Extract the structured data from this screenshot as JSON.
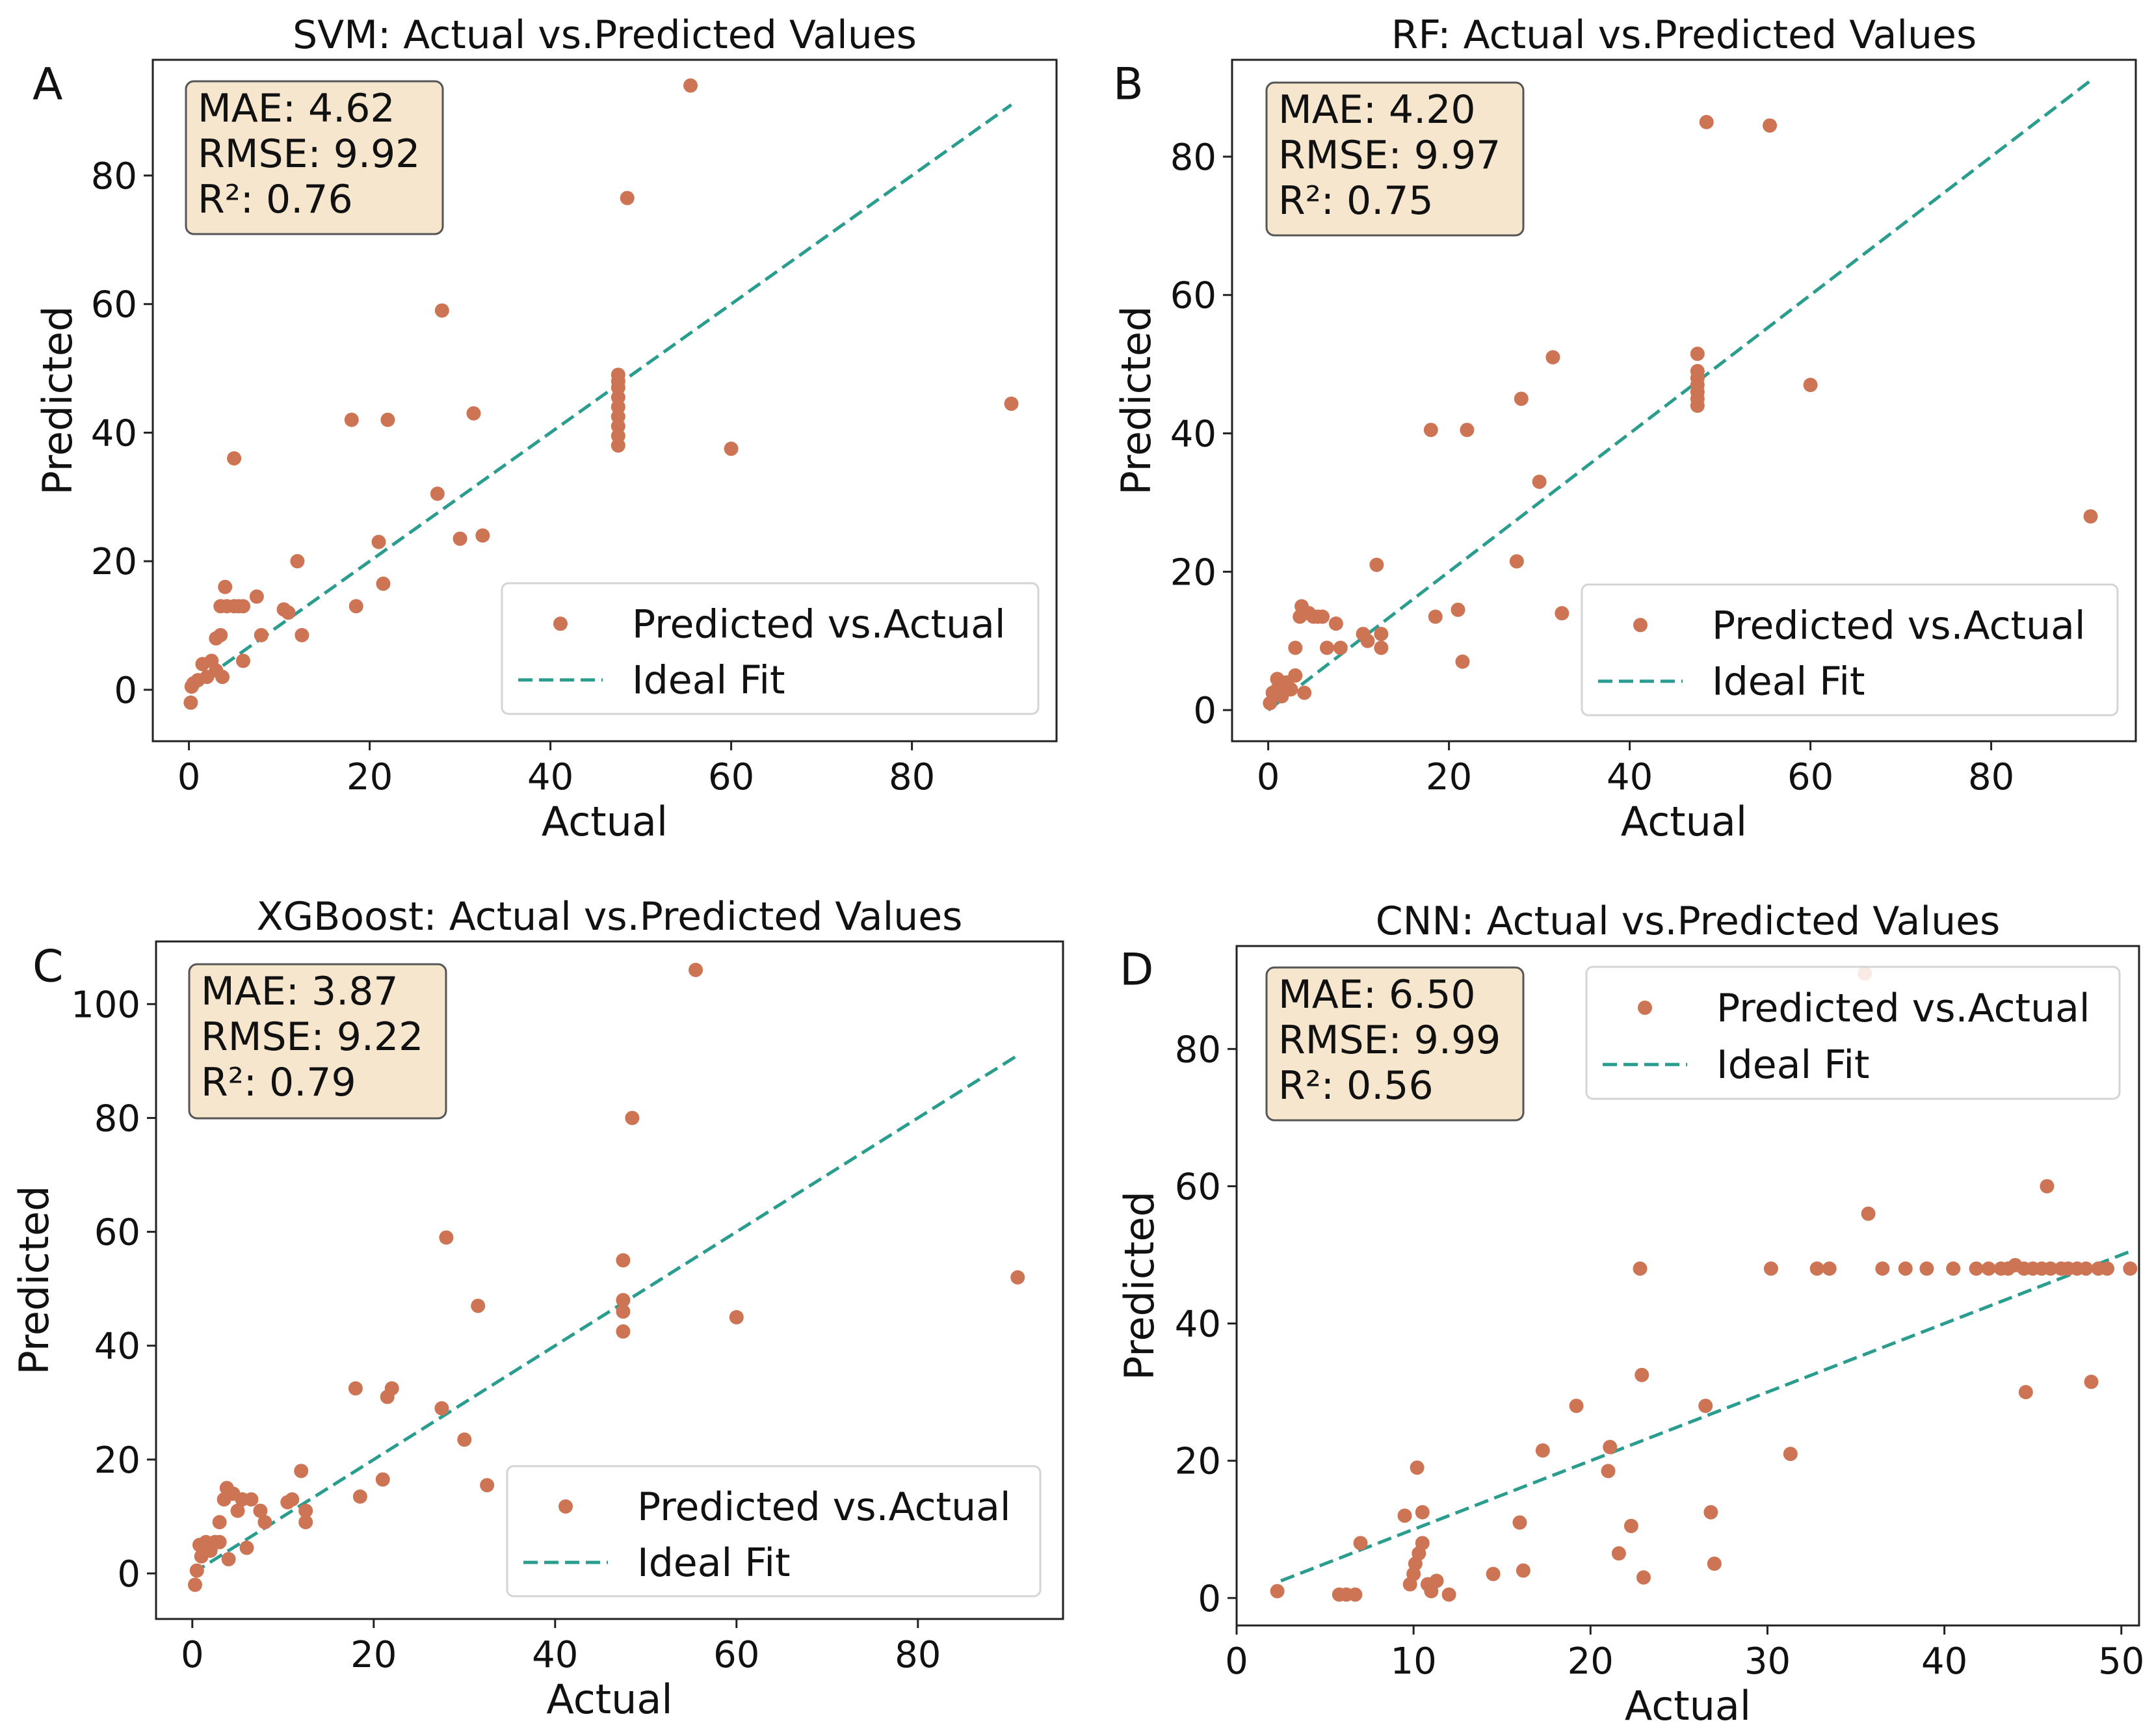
{
  "figure": {
    "background": "#ffffff"
  },
  "style": {
    "point_color": "#cd7454",
    "line_color": "#2a9d8f",
    "metrics_box_fill": "#f6e6cd",
    "metrics_box_stroke": "#555555",
    "legend_box_stroke": "#d4d4d4"
  },
  "chart_data": [
    {
      "panel": "A",
      "type": "scatter",
      "title": "SVM: Actual vs.Predicted Values",
      "xlabel": "Actual",
      "ylabel": "Predicted",
      "xlim": [
        -4,
        96
      ],
      "ylim": [
        -8,
        98
      ],
      "xticks": [
        0,
        20,
        40,
        60,
        80
      ],
      "yticks": [
        0,
        20,
        40,
        60,
        80
      ],
      "metrics": [
        "MAE: 4.62",
        "RMSE: 9.92",
        "R²: 0.76"
      ],
      "legend": {
        "position": "bottom-right",
        "points_label": "Predicted vs.Actual",
        "line_label": "Ideal Fit"
      },
      "ideal_fit": {
        "x": [
          0,
          91
        ],
        "y": [
          0,
          91
        ]
      },
      "points": [
        [
          0.2,
          -2
        ],
        [
          0.3,
          0.5
        ],
        [
          0.5,
          1
        ],
        [
          1,
          1.5
        ],
        [
          1.5,
          4
        ],
        [
          2,
          2
        ],
        [
          2.5,
          4.5
        ],
        [
          3,
          3
        ],
        [
          3,
          8
        ],
        [
          3.5,
          8.5
        ],
        [
          3.5,
          13
        ],
        [
          3.7,
          2
        ],
        [
          4,
          16
        ],
        [
          4.2,
          13
        ],
        [
          5,
          13
        ],
        [
          5.5,
          13
        ],
        [
          6,
          4.5
        ],
        [
          6,
          13
        ],
        [
          7.5,
          14.5
        ],
        [
          8,
          8.5
        ],
        [
          10.5,
          12.5
        ],
        [
          11,
          12
        ],
        [
          12,
          20
        ],
        [
          12.5,
          8.5
        ],
        [
          5,
          36
        ],
        [
          18,
          42
        ],
        [
          18.5,
          13
        ],
        [
          21,
          23
        ],
        [
          21.5,
          16.5
        ],
        [
          22,
          42
        ],
        [
          27.5,
          30.5
        ],
        [
          28,
          59
        ],
        [
          30,
          23.5
        ],
        [
          31.5,
          43
        ],
        [
          32.5,
          24
        ],
        [
          47.5,
          38
        ],
        [
          47.5,
          39.5
        ],
        [
          47.5,
          41
        ],
        [
          47.5,
          42.5
        ],
        [
          47.5,
          44
        ],
        [
          47.5,
          45.5
        ],
        [
          47.5,
          47
        ],
        [
          47.5,
          48
        ],
        [
          47.5,
          49
        ],
        [
          48.5,
          76.5
        ],
        [
          55.5,
          94
        ],
        [
          60,
          37.5
        ],
        [
          91,
          44.5
        ]
      ]
    },
    {
      "panel": "B",
      "type": "scatter",
      "title": "RF: Actual vs.Predicted Values",
      "xlabel": "Actual",
      "ylabel": "Predicted",
      "xlim": [
        -4,
        96
      ],
      "ylim": [
        -4.5,
        94
      ],
      "xticks": [
        0,
        20,
        40,
        60,
        80
      ],
      "yticks": [
        0,
        20,
        40,
        60,
        80
      ],
      "metrics": [
        "MAE: 4.20",
        "RMSE: 9.97",
        "R²: 0.75"
      ],
      "legend": {
        "position": "bottom-right",
        "points_label": "Predicted vs.Actual",
        "line_label": "Ideal Fit"
      },
      "ideal_fit": {
        "x": [
          0,
          91
        ],
        "y": [
          0,
          91
        ]
      },
      "points": [
        [
          0.2,
          1
        ],
        [
          0.5,
          2.5
        ],
        [
          1,
          3
        ],
        [
          1,
          4.5
        ],
        [
          1.5,
          2
        ],
        [
          2,
          4
        ],
        [
          2.5,
          3
        ],
        [
          3,
          5
        ],
        [
          3,
          9
        ],
        [
          3.5,
          13.5
        ],
        [
          3.7,
          15
        ],
        [
          4,
          2.5
        ],
        [
          4.5,
          14
        ],
        [
          5,
          13.5
        ],
        [
          5.5,
          13.5
        ],
        [
          6,
          13.5
        ],
        [
          6.5,
          9
        ],
        [
          7.5,
          12.5
        ],
        [
          8,
          9
        ],
        [
          10.5,
          11
        ],
        [
          11,
          10
        ],
        [
          12,
          21
        ],
        [
          12.5,
          9
        ],
        [
          12.5,
          11
        ],
        [
          18,
          40.5
        ],
        [
          18.5,
          13.5
        ],
        [
          21,
          14.5
        ],
        [
          21.5,
          7
        ],
        [
          22,
          40.5
        ],
        [
          27.5,
          21.5
        ],
        [
          28,
          45
        ],
        [
          30,
          33
        ],
        [
          31.5,
          51
        ],
        [
          32.5,
          14
        ],
        [
          47.5,
          44
        ],
        [
          47.5,
          45
        ],
        [
          47.5,
          46
        ],
        [
          47.5,
          47
        ],
        [
          47.5,
          48
        ],
        [
          47.5,
          49
        ],
        [
          47.5,
          51.5
        ],
        [
          48.5,
          85
        ],
        [
          55.5,
          84.5
        ],
        [
          60,
          47
        ],
        [
          91,
          28
        ]
      ]
    },
    {
      "panel": "C",
      "type": "scatter",
      "title": "XGBoost: Actual vs.Predicted Values",
      "xlabel": "Actual",
      "ylabel": "Predicted",
      "xlim": [
        -4,
        96
      ],
      "ylim": [
        -8,
        111
      ],
      "xticks": [
        0,
        20,
        40,
        60,
        80
      ],
      "yticks": [
        0,
        20,
        40,
        60,
        80,
        100
      ],
      "metrics": [
        "MAE: 3.87",
        "RMSE: 9.22",
        "R²: 0.79"
      ],
      "legend": {
        "position": "bottom-right",
        "points_label": "Predicted vs.Actual",
        "line_label": "Ideal Fit"
      },
      "ideal_fit": {
        "x": [
          0,
          91
        ],
        "y": [
          0,
          91
        ]
      },
      "points": [
        [
          0.3,
          -2
        ],
        [
          0.5,
          0.5
        ],
        [
          0.8,
          5
        ],
        [
          1,
          3
        ],
        [
          1.5,
          5.5
        ],
        [
          2,
          4
        ],
        [
          2.5,
          5.5
        ],
        [
          3,
          9
        ],
        [
          3,
          5.5
        ],
        [
          3.5,
          13
        ],
        [
          3.8,
          15
        ],
        [
          4,
          2.5
        ],
        [
          4.5,
          14
        ],
        [
          5,
          11
        ],
        [
          5.5,
          13
        ],
        [
          6,
          4.5
        ],
        [
          6.5,
          13
        ],
        [
          7.5,
          11
        ],
        [
          8,
          9
        ],
        [
          10.5,
          12.5
        ],
        [
          11,
          13
        ],
        [
          12,
          18
        ],
        [
          12.5,
          9
        ],
        [
          12.5,
          11
        ],
        [
          18,
          32.5
        ],
        [
          18.5,
          13.5
        ],
        [
          21,
          16.5
        ],
        [
          21.5,
          31
        ],
        [
          22,
          32.5
        ],
        [
          27.5,
          29
        ],
        [
          28,
          59
        ],
        [
          30,
          23.5
        ],
        [
          31.5,
          47
        ],
        [
          32.5,
          15.5
        ],
        [
          47.5,
          42.5
        ],
        [
          47.5,
          46
        ],
        [
          47.5,
          48
        ],
        [
          47.5,
          55
        ],
        [
          48.5,
          80
        ],
        [
          55.5,
          106
        ],
        [
          60,
          45
        ],
        [
          91,
          52
        ]
      ]
    },
    {
      "panel": "D",
      "type": "scatter",
      "title": "CNN: Actual vs.Predicted Values",
      "xlabel": "Actual",
      "ylabel": "Predicted",
      "xlim": [
        0,
        51
      ],
      "ylim": [
        -4,
        95
      ],
      "xticks": [
        0,
        10,
        20,
        30,
        40,
        50
      ],
      "yticks": [
        0,
        20,
        40,
        60,
        80
      ],
      "metrics": [
        "MAE: 6.50",
        "RMSE: 9.99",
        "R²: 0.56"
      ],
      "legend": {
        "position": "top-right",
        "points_label": "Predicted vs.Actual",
        "line_label": "Ideal Fit"
      },
      "ideal_fit": {
        "x": [
          2.5,
          50.5
        ],
        "y": [
          2.5,
          50.5
        ]
      },
      "points": [
        [
          2.3,
          1
        ],
        [
          5.8,
          0.5
        ],
        [
          6.2,
          0.5
        ],
        [
          6.7,
          0.5
        ],
        [
          7,
          8
        ],
        [
          9.5,
          12
        ],
        [
          9.8,
          2
        ],
        [
          10,
          3.5
        ],
        [
          10.1,
          5
        ],
        [
          10.2,
          19
        ],
        [
          10.3,
          6.5
        ],
        [
          10.5,
          12.5
        ],
        [
          10.5,
          8
        ],
        [
          10.8,
          2
        ],
        [
          11,
          1
        ],
        [
          11.3,
          2.5
        ],
        [
          12,
          0.5
        ],
        [
          14.5,
          3.5
        ],
        [
          16,
          11
        ],
        [
          16.2,
          4
        ],
        [
          17.3,
          21.5
        ],
        [
          19.2,
          28
        ],
        [
          21,
          18.5
        ],
        [
          21.1,
          22
        ],
        [
          21.6,
          6.5
        ],
        [
          22.3,
          10.5
        ],
        [
          22.8,
          48
        ],
        [
          22.9,
          32.5
        ],
        [
          23,
          3
        ],
        [
          26.5,
          28
        ],
        [
          26.8,
          12.5
        ],
        [
          27,
          5
        ],
        [
          30.2,
          48
        ],
        [
          31.3,
          21
        ],
        [
          32.8,
          48
        ],
        [
          33.5,
          48
        ],
        [
          35.7,
          56
        ],
        [
          36.5,
          48
        ],
        [
          37.8,
          48
        ],
        [
          39,
          48
        ],
        [
          40.5,
          48
        ],
        [
          41.8,
          48
        ],
        [
          42.5,
          48
        ],
        [
          43.2,
          48
        ],
        [
          43.6,
          48
        ],
        [
          44,
          48.5
        ],
        [
          44.5,
          48
        ],
        [
          44.6,
          30
        ],
        [
          45,
          48
        ],
        [
          45.5,
          48
        ],
        [
          45.8,
          60
        ],
        [
          46,
          48
        ],
        [
          46.6,
          48
        ],
        [
          47,
          48
        ],
        [
          47.5,
          48
        ],
        [
          48,
          48
        ],
        [
          48.3,
          31.5
        ],
        [
          48.7,
          48
        ],
        [
          49.2,
          48
        ],
        [
          50.5,
          48
        ],
        [
          35.5,
          91
        ]
      ]
    }
  ]
}
